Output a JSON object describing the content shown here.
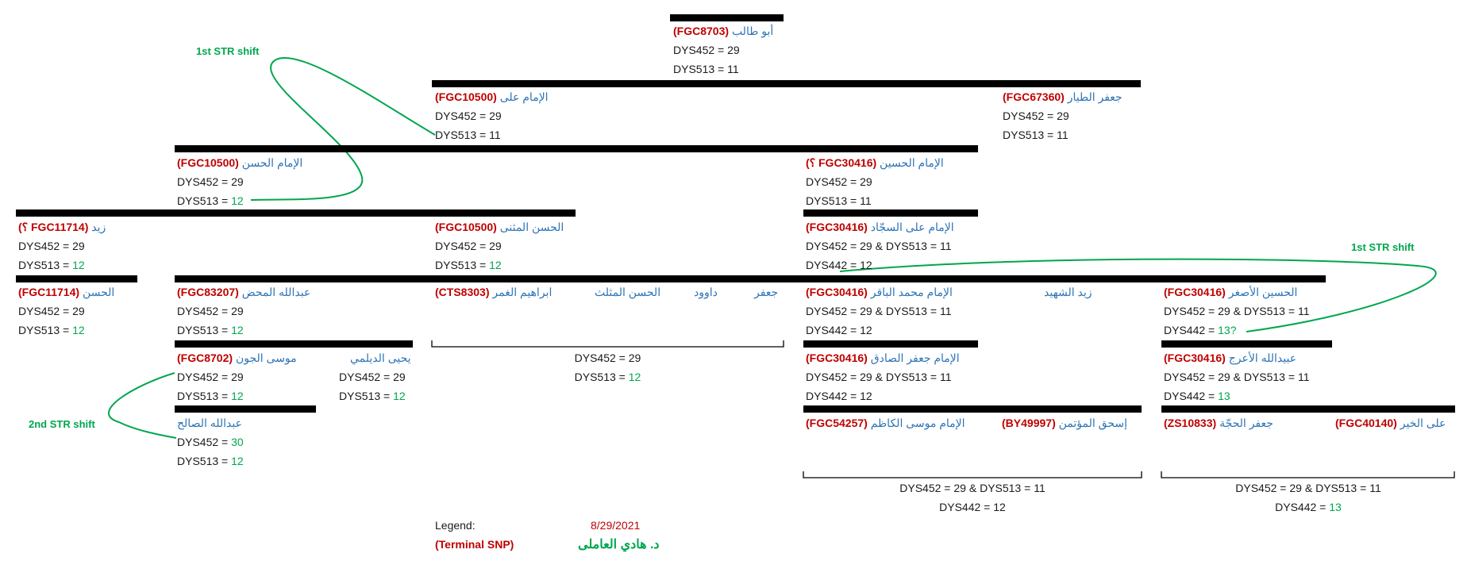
{
  "colors": {
    "name": "#2e74b5",
    "snp": "#c00000",
    "shift": "#00a64f",
    "bar": "#000000"
  },
  "labels": {
    "dys452": "DYS452",
    "dys513": "DYS513",
    "dys442": "DYS442",
    "eq": " = ",
    "amp": " & "
  },
  "nodes": {
    "abutalib": {
      "name": "أبو طالب",
      "snp": "FGC8703",
      "dys452": "29",
      "dys513": "11"
    },
    "imamali": {
      "name": "الإمام على",
      "snp": "FGC10500",
      "dys452": "29",
      "dys513": "11"
    },
    "jafartayyar": {
      "name": "جعفر الطيار",
      "snp": "FGC67360",
      "dys452": "29",
      "dys513": "11"
    },
    "hasan": {
      "name": "الإمام الحسن",
      "snp": "FGC10500",
      "dys452": "29",
      "dys513": "12"
    },
    "husayn": {
      "name": "الإمام الحسين",
      "snp": "FGC30416",
      "q": "؟",
      "dys452": "29",
      "dys513": "11"
    },
    "zayd": {
      "name": "زيد",
      "snp": "FGC11714",
      "q": "؟",
      "dys452": "29",
      "dys513": "12"
    },
    "hasanmuthanna": {
      "name": "الحسن المثنى",
      "snp": "FGC10500",
      "dys452": "29",
      "dys513": "12"
    },
    "sajjad": {
      "name": "الإمام على السجّاد",
      "snp": "FGC30416",
      "dys452": "29",
      "dys513": "11",
      "dys442": "12"
    },
    "hasan2": {
      "name": "الحسن",
      "snp": "FGC11714",
      "dys452": "29",
      "dys513": "12"
    },
    "abdullahmahd": {
      "name": "عبدالله المحض",
      "snp": "FGC83207",
      "dys452": "29",
      "dys513": "12"
    },
    "ibrahimghamr": {
      "name": "ابراهيم الغمر",
      "snp": "CTS8303"
    },
    "hasanmuthallath": {
      "name": "الحسن المثلث"
    },
    "dawud": {
      "name": "داوود"
    },
    "jafar1": {
      "name": "جعفر"
    },
    "baqir": {
      "name": "الإمام محمد الباقر",
      "snp": "FGC30416",
      "dys452": "29",
      "dys513": "11",
      "dys442": "12"
    },
    "zaydshahid": {
      "name": "زيد الشهيد"
    },
    "husaynasghar": {
      "name": "الحسين الأصغر",
      "snp": "FGC30416",
      "dys452": "29",
      "dys513": "11",
      "dys442": "13?"
    },
    "musajawn": {
      "name": "موسى الجون",
      "snp": "FGC8702",
      "dys452": "29",
      "dys513": "12"
    },
    "yahya": {
      "name": "يحيى الديلمي",
      "dys452": "29",
      "dys513": "12"
    },
    "sadiq": {
      "name": "الإمام جعفر الصادق",
      "snp": "FGC30416",
      "dys452": "29",
      "dys513": "11",
      "dys442": "12"
    },
    "ubaydullah": {
      "name": "عبيدالله الأعرج",
      "snp": "FGC30416",
      "dys452": "29",
      "dys513": "11",
      "dys442": "13"
    },
    "abdullahsalih": {
      "name": "عبدالله الصالح",
      "dys452": "30",
      "dys513": "12"
    },
    "kazim": {
      "name": "الإمام موسى الكاظم",
      "snp": "FGC54257"
    },
    "ishaq": {
      "name": "إسحق المؤتمن",
      "snp": "BY49997"
    },
    "jafarhujja": {
      "name": "جعفر الحجّة",
      "snp": "ZS10833"
    },
    "alikhayr": {
      "name": "على الخير",
      "snp": "FGC40140"
    }
  },
  "groups": {
    "hasan_sons": {
      "dys452": "29",
      "dys513": "12"
    },
    "sadiq_sons": {
      "dys452": "29",
      "dys513": "11",
      "dys442": "12"
    },
    "ubaydullah_sons": {
      "dys452": "29",
      "dys513": "11",
      "dys442": "13"
    }
  },
  "annotations": {
    "shift1a": "1st STR shift",
    "shift1b": "1st STR shift",
    "shift2": "2nd STR shift"
  },
  "legend": {
    "label": "Legend:",
    "date": "8/29/2021",
    "terminal": "Terminal SNP",
    "author": "د. هادي العاملى"
  }
}
